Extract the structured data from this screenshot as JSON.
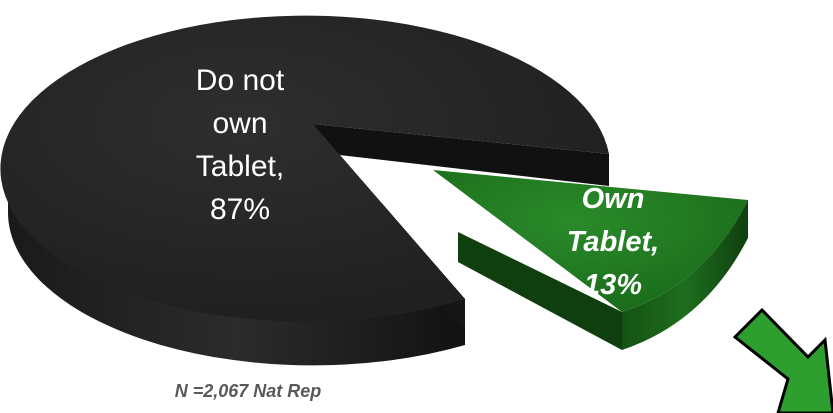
{
  "chart_data": {
    "type": "pie",
    "style": "3d-exploded",
    "slices": [
      {
        "label_lines": [
          "Do not",
          "own",
          "Tablet,",
          "87%"
        ],
        "category": "Do not own Tablet",
        "value": 87,
        "color": "#262626"
      },
      {
        "label_lines": [
          "Own",
          "Tablet,",
          "13%"
        ],
        "category": "Own Tablet",
        "value": 13,
        "color": "#1f7a1f",
        "exploded": true
      }
    ],
    "footnote": "N =2,067 Nat Rep"
  },
  "arrow": {
    "icon": "arrow-down-right-icon",
    "color": "#2e9e2e"
  }
}
